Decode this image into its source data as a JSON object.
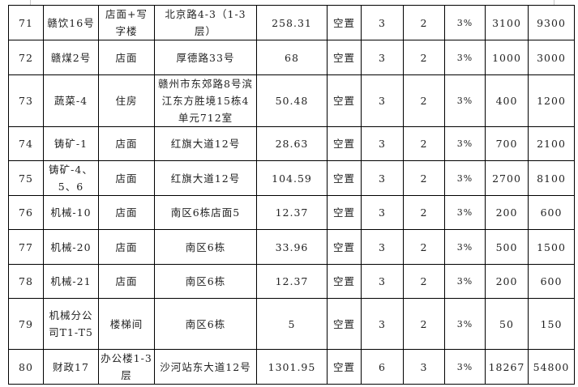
{
  "rows": [
    {
      "no": "71",
      "name": "赣饮16号",
      "type": "店面+写字楼",
      "address": "北京路4-3（1-3层）",
      "area": "258.31",
      "status": "空置",
      "c1": "3",
      "c2": "2",
      "rate": "3%",
      "price": "3100",
      "total": "9300"
    },
    {
      "no": "72",
      "name": "赣煤2号",
      "type": "店面",
      "address": "厚德路33号",
      "area": "68",
      "status": "空置",
      "c1": "3",
      "c2": "2",
      "rate": "3%",
      "price": "1000",
      "total": "3000"
    },
    {
      "no": "73",
      "name": "蔬菜-4",
      "type": "住房",
      "address": "赣州市东郊路8号滨江东方胜境15栋4单元712室",
      "area": "50.48",
      "status": "空置",
      "c1": "3",
      "c2": "2",
      "rate": "3%",
      "price": "400",
      "total": "1200"
    },
    {
      "no": "74",
      "name": "铸矿-1",
      "type": "店面",
      "address": "红旗大道12号",
      "area": "28.63",
      "status": "空置",
      "c1": "3",
      "c2": "2",
      "rate": "3%",
      "price": "700",
      "total": "2100"
    },
    {
      "no": "75",
      "name": "铸矿-4、5、6",
      "type": "店面",
      "address": "红旗大道12号",
      "area": "104.59",
      "status": "空置",
      "c1": "3",
      "c2": "2",
      "rate": "3%",
      "price": "2700",
      "total": "8100"
    },
    {
      "no": "76",
      "name": "机械-10",
      "type": "店面",
      "address": "南区6栋店面5",
      "area": "12.37",
      "status": "空置",
      "c1": "3",
      "c2": "2",
      "rate": "3%",
      "price": "200",
      "total": "600"
    },
    {
      "no": "77",
      "name": "机械-20",
      "type": "店面",
      "address": "南区6栋",
      "area": "33.96",
      "status": "空置",
      "c1": "3",
      "c2": "2",
      "rate": "3%",
      "price": "500",
      "total": "1500"
    },
    {
      "no": "78",
      "name": "机械-21",
      "type": "店面",
      "address": "南区6栋",
      "area": "12.37",
      "status": "空置",
      "c1": "3",
      "c2": "2",
      "rate": "3%",
      "price": "200",
      "total": "600"
    },
    {
      "no": "79",
      "name": "机械分公司T1-T5",
      "type": "楼梯间",
      "address": "南区6栋",
      "area": "5",
      "status": "空置",
      "c1": "3",
      "c2": "2",
      "rate": "3%",
      "price": "50",
      "total": "150"
    },
    {
      "no": "80",
      "name": "财政17",
      "type": "办公楼1-3层",
      "address": "沙河站东大道12号",
      "area": "1301.95",
      "status": "空置",
      "c1": "6",
      "c2": "3",
      "rate": "3%",
      "price": "18267",
      "total": "54800"
    }
  ]
}
